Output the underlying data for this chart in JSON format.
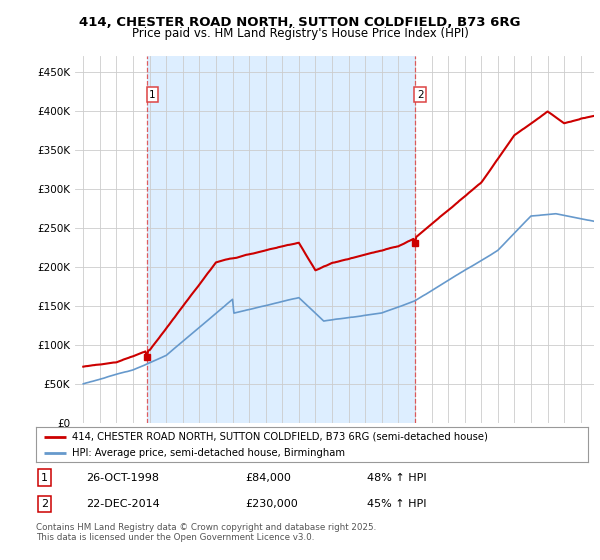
{
  "title_line1": "414, CHESTER ROAD NORTH, SUTTON COLDFIELD, B73 6RG",
  "title_line2": "Price paid vs. HM Land Registry's House Price Index (HPI)",
  "background_color": "#ffffff",
  "grid_color": "#cccccc",
  "red_line_color": "#cc0000",
  "blue_line_color": "#6699cc",
  "shade_color": "#ddeeff",
  "vline_color": "#dd4444",
  "annotation1": {
    "label": "1",
    "date": "26-OCT-1998",
    "price": "£84,000",
    "hpi": "48% ↑ HPI"
  },
  "annotation2": {
    "label": "2",
    "date": "22-DEC-2014",
    "price": "£230,000",
    "hpi": "45% ↑ HPI"
  },
  "legend_entry1": "414, CHESTER ROAD NORTH, SUTTON COLDFIELD, B73 6RG (semi-detached house)",
  "legend_entry2": "HPI: Average price, semi-detached house, Birmingham",
  "footer": "Contains HM Land Registry data © Crown copyright and database right 2025.\nThis data is licensed under the Open Government Licence v3.0.",
  "sale1_x": 1998.82,
  "sale1_y": 84000,
  "sale2_x": 2014.98,
  "sale2_y": 230000,
  "ylim": [
    0,
    470000
  ],
  "xlim_start": 1994.5,
  "xlim_end": 2025.8,
  "yticks": [
    0,
    50000,
    100000,
    150000,
    200000,
    250000,
    300000,
    350000,
    400000,
    450000
  ]
}
